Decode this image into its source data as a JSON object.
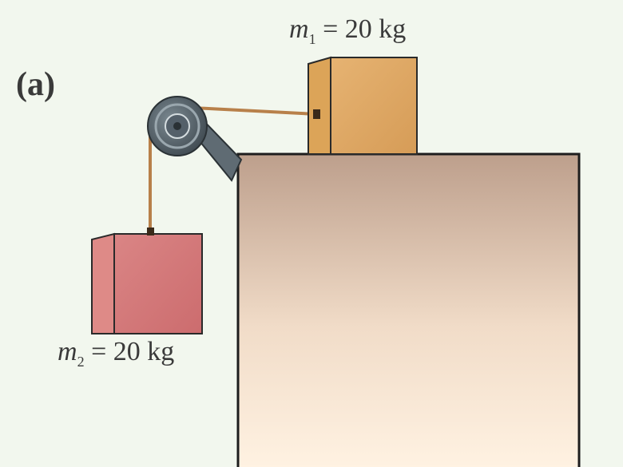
{
  "panel_label": "(a)",
  "mass1": {
    "symbol": "m",
    "subscript": "1",
    "equals": " = ",
    "value": "20 kg"
  },
  "mass2": {
    "symbol": "m",
    "subscript": "2",
    "equals": " = ",
    "value": "20 kg"
  },
  "colors": {
    "background": "#f2f7ee",
    "block1": "#e2aa66",
    "block2": "#d57a7a",
    "table_top": "#bd9f8c",
    "table_bottom": "#fff2e2",
    "rope": "#b8804a",
    "pulley": "#49555d"
  }
}
